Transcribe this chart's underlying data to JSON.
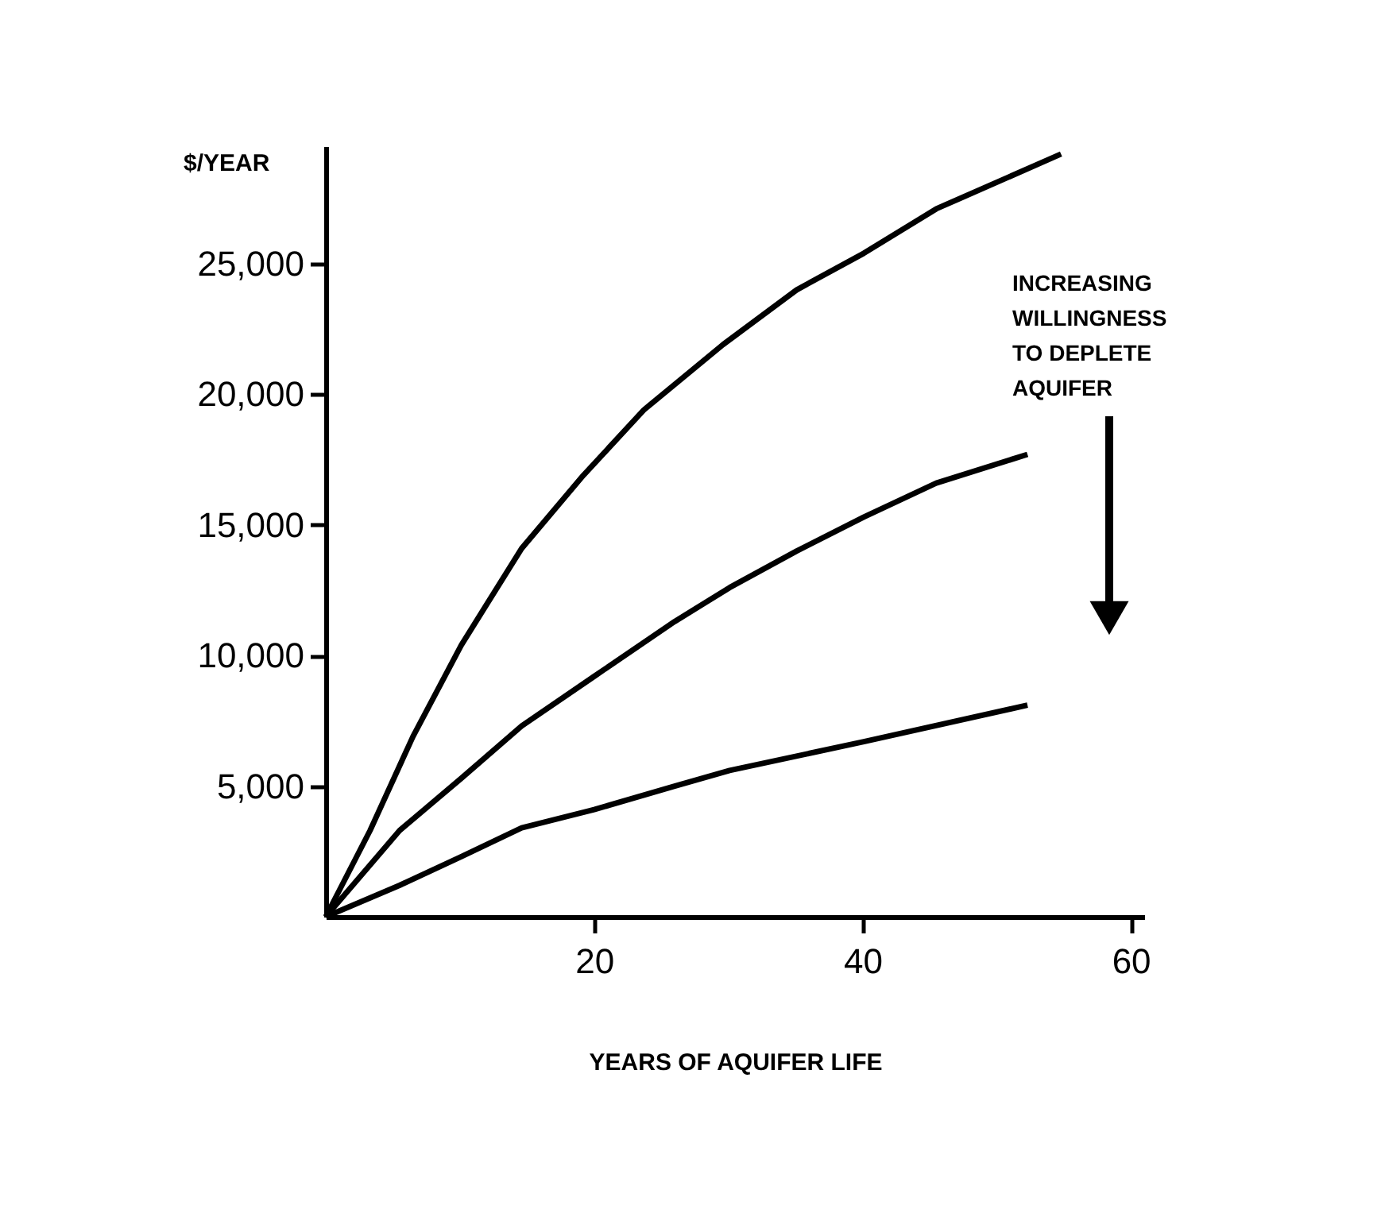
{
  "chart_data": {
    "type": "line",
    "xlabel": "YEARS OF AQUIFER LIFE",
    "ylabel": "$/YEAR",
    "annotations": [
      "INCREASING WILLINGNESS TO DEPLETE AQUIFER"
    ],
    "xlim": [
      0,
      61
    ],
    "xticks": [
      20,
      40,
      60
    ],
    "ylim": [
      0,
      29500
    ],
    "yticks": [
      {
        "value": 5000,
        "label": "5,000"
      },
      {
        "value": 10000,
        "label": "10,000"
      },
      {
        "value": 15000,
        "label": "15,000"
      },
      {
        "value": 20000,
        "label": "20,000"
      },
      {
        "value": 25000,
        "label": "25,000"
      }
    ],
    "grid": false,
    "legend": false,
    "marker": "none",
    "line_style": "solid",
    "series": [
      {
        "color": "#000000",
        "x": [
          0,
          3.3,
          6.5,
          10.1,
          14.6,
          19.2,
          23.7,
          29.6,
          35.1,
          40.1,
          45.5,
          54.8
        ],
        "values": [
          0,
          3300,
          6900,
          10400,
          14100,
          16900,
          19400,
          21900,
          24000,
          25400,
          27100,
          29200
        ]
      },
      {
        "color": "#000000",
        "x": [
          0,
          5.5,
          10.1,
          14.6,
          20,
          26,
          30.1,
          35.1,
          40.1,
          45.5,
          52.3
        ],
        "values": [
          0,
          3300,
          5300,
          7300,
          9200,
          11300,
          12600,
          14000,
          15300,
          16600,
          17700
        ]
      },
      {
        "color": "#000000",
        "x": [
          0,
          5.5,
          10.1,
          14.6,
          20,
          26,
          30.1,
          40.1,
          52.3
        ],
        "values": [
          0,
          1200,
          2300,
          3400,
          4100,
          5000,
          5600,
          6700,
          8100
        ]
      }
    ]
  }
}
